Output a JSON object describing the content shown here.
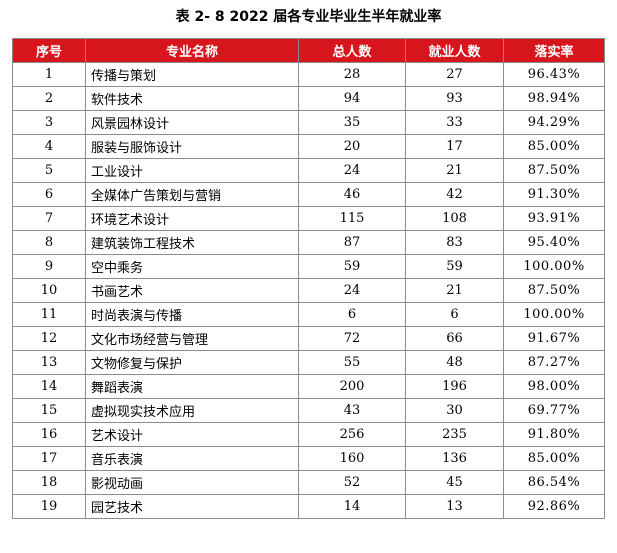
{
  "title": "表 2- 8   2022 届各专业毕业生半年就业率",
  "table": {
    "headers": [
      "序号",
      "专业名称",
      "总人数",
      "就业人数",
      "落实率"
    ],
    "rows": [
      [
        "1",
        "传播与策划",
        "28",
        "27",
        "96.43%"
      ],
      [
        "2",
        "软件技术",
        "94",
        "93",
        "98.94%"
      ],
      [
        "3",
        "风景园林设计",
        "35",
        "33",
        "94.29%"
      ],
      [
        "4",
        "服装与服饰设计",
        "20",
        "17",
        "85.00%"
      ],
      [
        "5",
        "工业设计",
        "24",
        "21",
        "87.50%"
      ],
      [
        "6",
        "全媒体广告策划与营销",
        "46",
        "42",
        "91.30%"
      ],
      [
        "7",
        "环境艺术设计",
        "115",
        "108",
        "93.91%"
      ],
      [
        "8",
        "建筑装饰工程技术",
        "87",
        "83",
        "95.40%"
      ],
      [
        "9",
        "空中乘务",
        "59",
        "59",
        "100.00%"
      ],
      [
        "10",
        "书画艺术",
        "24",
        "21",
        "87.50%"
      ],
      [
        "11",
        "时尚表演与传播",
        "6",
        "6",
        "100.00%"
      ],
      [
        "12",
        "文化市场经营与管理",
        "72",
        "66",
        "91.67%"
      ],
      [
        "13",
        "文物修复与保护",
        "55",
        "48",
        "87.27%"
      ],
      [
        "14",
        "舞蹈表演",
        "200",
        "196",
        "98.00%"
      ],
      [
        "15",
        "虚拟现实技术应用",
        "43",
        "30",
        "69.77%"
      ],
      [
        "16",
        "艺术设计",
        "256",
        "235",
        "91.80%"
      ],
      [
        "17",
        "音乐表演",
        "160",
        "136",
        "85.00%"
      ],
      [
        "18",
        "影视动画",
        "52",
        "45",
        "86.54%"
      ],
      [
        "19",
        "园艺技术",
        "14",
        "13",
        "92.86%"
      ]
    ]
  }
}
